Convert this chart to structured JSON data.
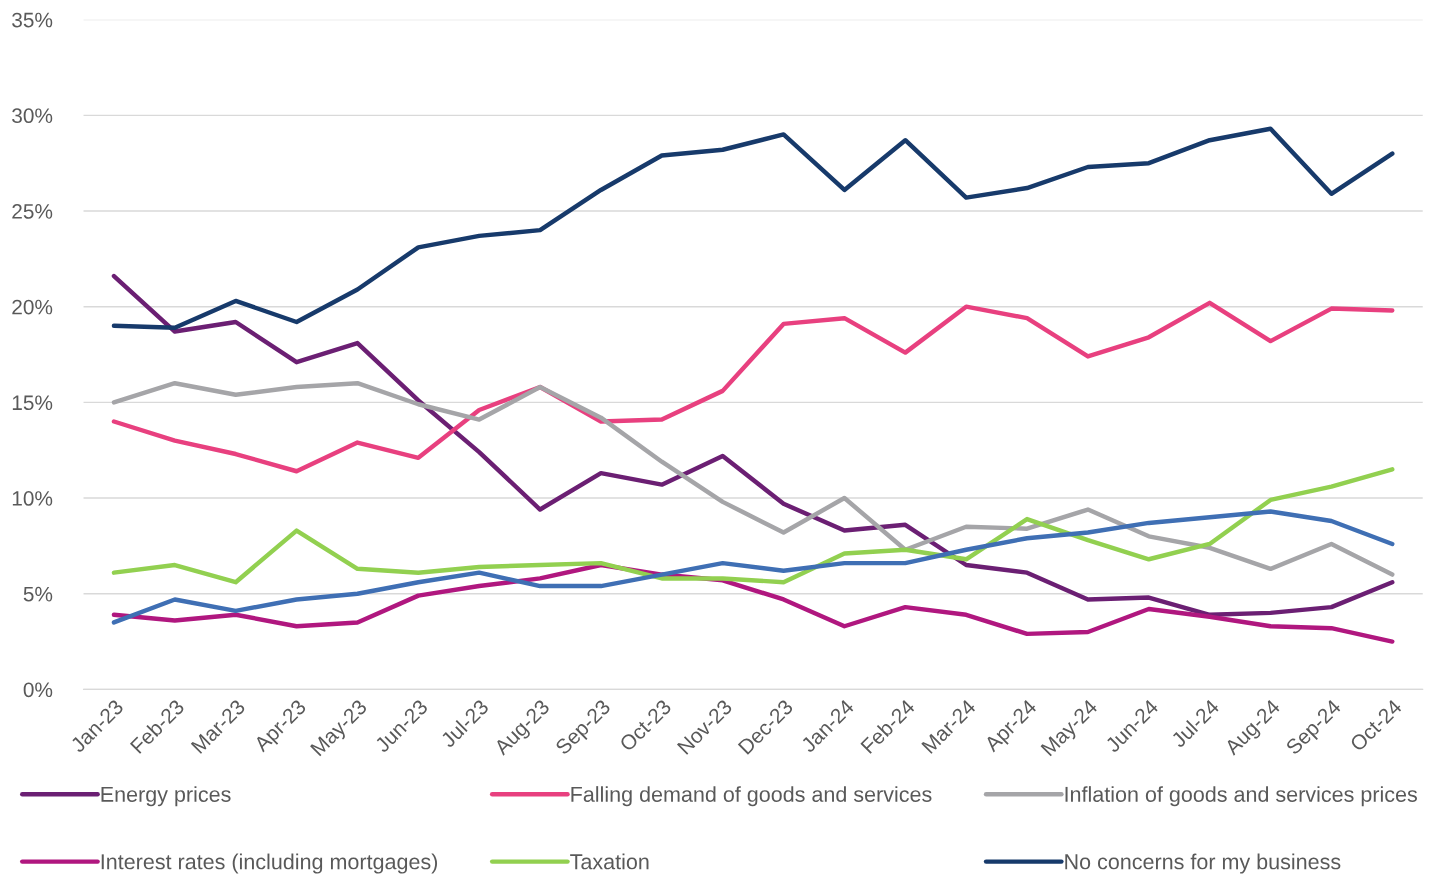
{
  "chart_data": {
    "type": "line",
    "categories": [
      "Jan-23",
      "Feb-23",
      "Mar-23",
      "Apr-23",
      "May-23",
      "Jun-23",
      "Jul-23",
      "Aug-23",
      "Sep-23",
      "Oct-23",
      "Nov-23",
      "Dec-23",
      "Jan-24",
      "Feb-24",
      "Mar-24",
      "Apr-24",
      "May-24",
      "Jun-24",
      "Jul-24",
      "Aug-24",
      "Sep-24",
      "Oct-24"
    ],
    "series": [
      {
        "name": "Energy prices",
        "color": "#6b1f73",
        "values": [
          21.6,
          18.7,
          19.2,
          17.1,
          18.1,
          15.1,
          12.4,
          9.4,
          11.3,
          10.7,
          12.2,
          9.7,
          8.3,
          8.6,
          6.5,
          6.1,
          4.7,
          4.8,
          3.9,
          4.0,
          4.3,
          5.6
        ]
      },
      {
        "name": "Falling demand of goods and services",
        "color": "#e8407f",
        "values": [
          14.0,
          13.0,
          12.3,
          11.4,
          12.9,
          12.1,
          14.6,
          15.8,
          14.0,
          14.1,
          15.6,
          19.1,
          19.4,
          17.6,
          20.0,
          19.4,
          17.4,
          18.4,
          20.2,
          18.2,
          19.9,
          19.8
        ]
      },
      {
        "name": "Inflation of goods and services prices",
        "color": "#a5a5a8",
        "values": [
          15.0,
          16.0,
          15.4,
          15.8,
          16.0,
          14.9,
          14.1,
          15.8,
          14.2,
          11.9,
          9.8,
          8.2,
          10.0,
          7.3,
          8.5,
          8.4,
          9.4,
          8.0,
          7.4,
          6.3,
          7.6,
          6.0
        ]
      },
      {
        "name": "Interest rates (including mortgages)",
        "color": "#b0177f",
        "values": [
          3.9,
          3.6,
          3.9,
          3.3,
          3.5,
          4.9,
          5.4,
          5.8,
          6.5,
          6.0,
          5.7,
          4.7,
          3.3,
          4.3,
          3.9,
          2.9,
          3.0,
          4.2,
          3.8,
          3.3,
          3.2,
          2.5
        ]
      },
      {
        "name": "Taxation",
        "color": "#92d050",
        "values": [
          6.1,
          6.5,
          5.6,
          8.3,
          6.3,
          6.1,
          6.4,
          6.5,
          6.6,
          5.8,
          5.8,
          5.6,
          7.1,
          7.3,
          6.8,
          8.9,
          7.8,
          6.8,
          7.6,
          9.9,
          10.6,
          11.5
        ]
      },
      {
        "name": "No concerns for my business",
        "color": "#173a6b",
        "values": [
          19.0,
          18.9,
          20.3,
          19.2,
          20.9,
          23.1,
          23.7,
          24.0,
          26.1,
          27.9,
          28.2,
          29.0,
          26.1,
          28.7,
          25.7,
          26.2,
          27.3,
          27.5,
          28.7,
          29.3,
          25.9,
          28.0
        ]
      },
      {
        "color": "#3f6fb4",
        "values": [
          3.5,
          4.7,
          4.1,
          4.7,
          5.0,
          5.6,
          6.1,
          5.4,
          5.4,
          6.0,
          6.6,
          6.2,
          6.6,
          6.6,
          7.3,
          7.9,
          8.2,
          8.7,
          9.0,
          9.3,
          8.8,
          7.6
        ]
      }
    ],
    "ylim": [
      0,
      35
    ],
    "yticks": [
      {
        "value": 0,
        "label": "0%"
      },
      {
        "value": 5,
        "label": "5%"
      },
      {
        "value": 10,
        "label": "10%"
      },
      {
        "value": 15,
        "label": "15%"
      },
      {
        "value": 20,
        "label": "20%"
      },
      {
        "value": 25,
        "label": "25%"
      },
      {
        "value": 30,
        "label": "30%"
      },
      {
        "value": 35,
        "label": "35%"
      }
    ],
    "grid": "y",
    "legend": "bottom",
    "marker": "none",
    "line_style": "solid"
  }
}
